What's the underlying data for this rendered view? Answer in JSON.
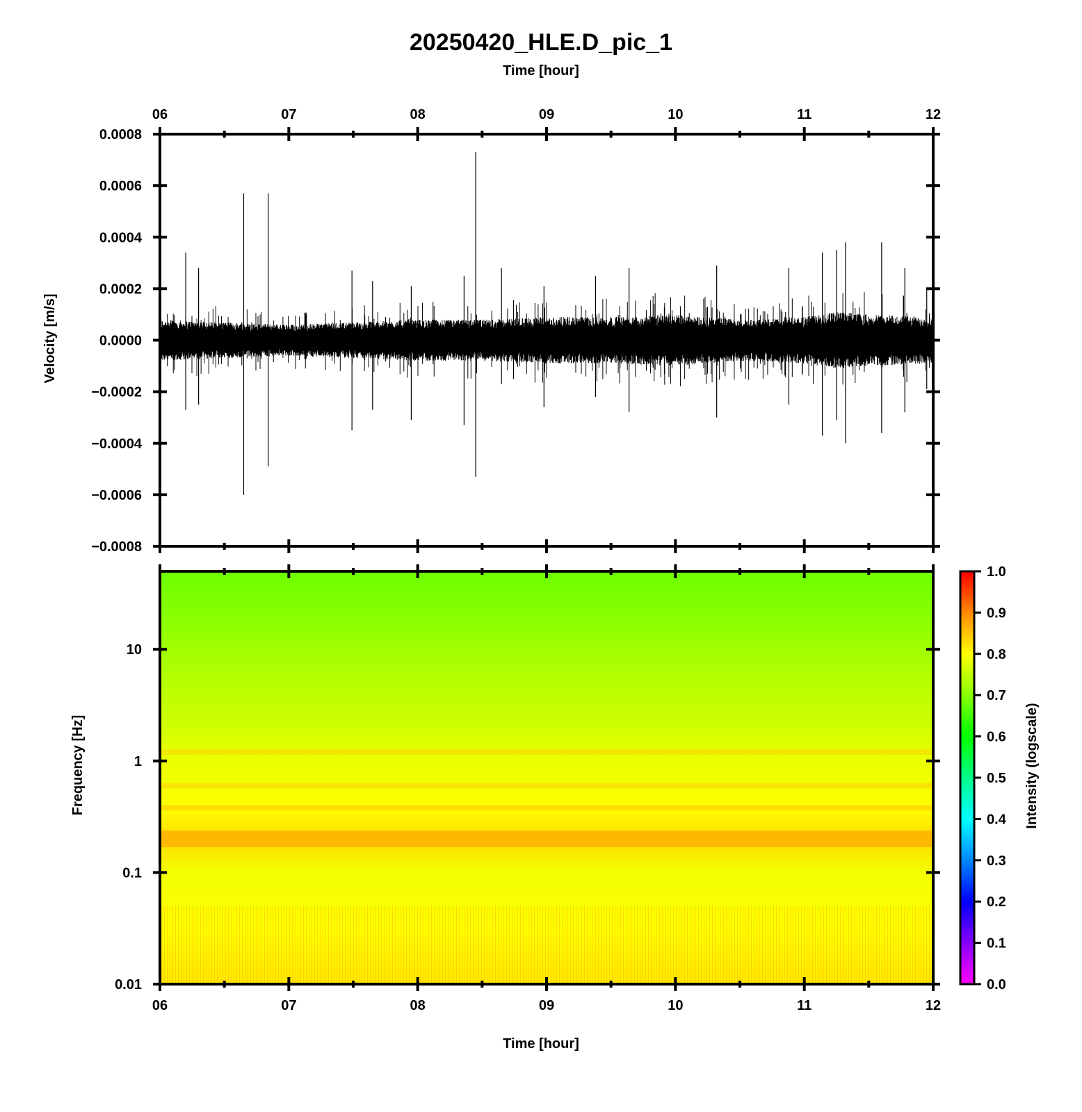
{
  "title": "20250420_HLE.D_pic_1",
  "colors": {
    "axis": "#000000",
    "trace": "#000000",
    "background": "#ffffff"
  },
  "chart_data": [
    {
      "type": "line",
      "panel": "waveform",
      "title": "20250420_HLE.D_pic_1",
      "top_xlabel": "Time [hour]",
      "ylabel": "Velocity [m/s]",
      "xlim": [
        6,
        12
      ],
      "ylim": [
        -0.0008,
        0.0008
      ],
      "x_ticks": [
        "06",
        "07",
        "08",
        "09",
        "10",
        "11",
        "12"
      ],
      "y_ticks": [
        "0.0008",
        "0.0006",
        "0.0004",
        "0.0002",
        "0.0000",
        "−0.0002",
        "−0.0004",
        "−0.0006",
        "−0.0008"
      ],
      "noise_envelope": {
        "x": [
          6.0,
          6.5,
          7.0,
          7.5,
          8.0,
          8.5,
          9.0,
          9.5,
          10.0,
          10.5,
          11.0,
          11.25,
          11.5,
          12.0
        ],
        "amplitude": [
          8e-05,
          7e-05,
          6e-05,
          7e-05,
          8e-05,
          8e-05,
          9e-05,
          9e-05,
          0.0001,
          8e-05,
          9e-05,
          0.00011,
          0.0001,
          9e-05
        ]
      },
      "spikes": [
        {
          "x": 6.2,
          "max": 0.00034,
          "min": -0.00027
        },
        {
          "x": 6.3,
          "max": 0.00028,
          "min": -0.00025
        },
        {
          "x": 6.65,
          "max": 0.00057,
          "min": -0.0006
        },
        {
          "x": 6.84,
          "max": 0.00057,
          "min": -0.00049
        },
        {
          "x": 7.49,
          "max": 0.00027,
          "min": -0.00035
        },
        {
          "x": 7.65,
          "max": 0.00023,
          "min": -0.00027
        },
        {
          "x": 7.95,
          "max": 0.00021,
          "min": -0.00031
        },
        {
          "x": 8.36,
          "max": 0.00025,
          "min": -0.00033
        },
        {
          "x": 8.45,
          "max": 0.00073,
          "min": -0.00053
        },
        {
          "x": 8.65,
          "max": 0.00028,
          "min": -0.00017
        },
        {
          "x": 8.98,
          "max": 0.00021,
          "min": -0.00026
        },
        {
          "x": 9.38,
          "max": 0.00025,
          "min": -0.00022
        },
        {
          "x": 9.64,
          "max": 0.00028,
          "min": -0.00028
        },
        {
          "x": 10.32,
          "max": 0.00029,
          "min": -0.0003
        },
        {
          "x": 10.88,
          "max": 0.00028,
          "min": -0.00025
        },
        {
          "x": 11.14,
          "max": 0.00034,
          "min": -0.00037
        },
        {
          "x": 11.25,
          "max": 0.00035,
          "min": -0.00031
        },
        {
          "x": 11.32,
          "max": 0.00038,
          "min": -0.0004
        },
        {
          "x": 11.6,
          "max": 0.00038,
          "min": -0.00036
        },
        {
          "x": 11.78,
          "max": 0.00028,
          "min": -0.00028
        },
        {
          "x": 11.95,
          "max": 0.0002,
          "min": -0.00019
        }
      ]
    },
    {
      "type": "heatmap",
      "panel": "spectrogram",
      "xlabel": "Time [hour]",
      "ylabel": "Frequency [Hz]",
      "xlim": [
        6,
        12
      ],
      "ylim": [
        0.01,
        50
      ],
      "yscale": "log",
      "x_ticks": [
        "06",
        "07",
        "08",
        "09",
        "10",
        "11",
        "12"
      ],
      "y_ticks": [
        "10",
        "1",
        "0.1",
        "0.01"
      ],
      "colorbar": {
        "label": "Intensity (logscale)",
        "range": [
          0.0,
          1.0
        ],
        "ticks": [
          "1.0",
          "0.9",
          "0.8",
          "0.7",
          "0.6",
          "0.5",
          "0.4",
          "0.3",
          "0.2",
          "0.1",
          "0.0"
        ],
        "colormap": [
          "#ff00ff",
          "#8800ff",
          "#0000ff",
          "#0088ff",
          "#00ffff",
          "#00ff88",
          "#00ff00",
          "#88ff00",
          "#ffff00",
          "#ff8800",
          "#ff0000"
        ]
      },
      "intensity_profile": [
        {
          "freq": 50,
          "intensity": 0.68
        },
        {
          "freq": 20,
          "intensity": 0.7
        },
        {
          "freq": 10,
          "intensity": 0.72
        },
        {
          "freq": 5,
          "intensity": 0.74
        },
        {
          "freq": 2,
          "intensity": 0.76
        },
        {
          "freq": 1.2,
          "intensity": 0.78
        },
        {
          "freq": 0.6,
          "intensity": 0.79
        },
        {
          "freq": 0.38,
          "intensity": 0.8
        },
        {
          "freq": 0.2,
          "intensity": 0.83
        },
        {
          "freq": 0.1,
          "intensity": 0.79
        },
        {
          "freq": 0.03,
          "intensity": 0.8
        },
        {
          "freq": 0.01,
          "intensity": 0.82
        }
      ],
      "highlight_bands": [
        {
          "freq": 1.2,
          "intensity": 0.84
        },
        {
          "freq": 0.6,
          "intensity": 0.85
        },
        {
          "freq": 0.38,
          "intensity": 0.86
        },
        {
          "freq": 0.2,
          "intensity": 0.9
        }
      ]
    }
  ]
}
